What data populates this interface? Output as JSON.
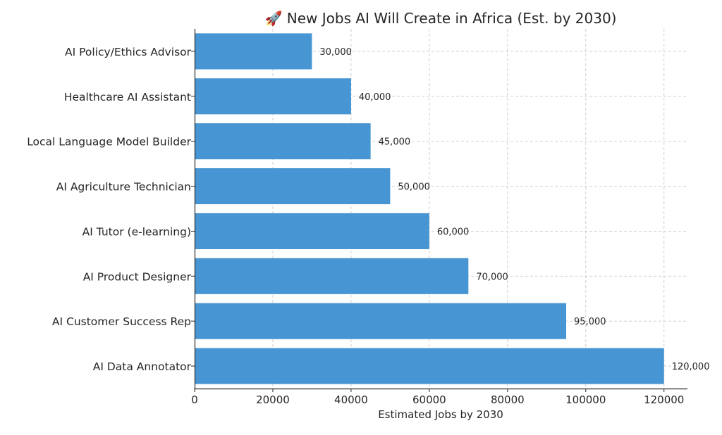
{
  "chart_data": {
    "type": "bar",
    "orientation": "horizontal",
    "title": "🚀 New Jobs AI Will Create in Africa (Est. by 2030)",
    "xlabel": "Estimated Jobs by 2030",
    "ylabel": "",
    "xlim": [
      0,
      126000
    ],
    "xticks": [
      0,
      20000,
      40000,
      60000,
      80000,
      100000,
      120000
    ],
    "categories": [
      "AI Data Annotator",
      "AI Customer Success Rep",
      "AI Product Designer",
      "AI Tutor (e-learning)",
      "AI Agriculture Technician",
      "Local Language Model Builder",
      "Healthcare AI Assistant",
      "AI Policy/Ethics Advisor"
    ],
    "values": [
      120000,
      95000,
      70000,
      60000,
      50000,
      45000,
      40000,
      30000
    ],
    "value_labels": [
      "120,000",
      "95,000",
      "70,000",
      "60,000",
      "50,000",
      "45,000",
      "40,000",
      "30,000"
    ],
    "bar_color": "#4796d3",
    "grid": true,
    "legend": "none"
  }
}
